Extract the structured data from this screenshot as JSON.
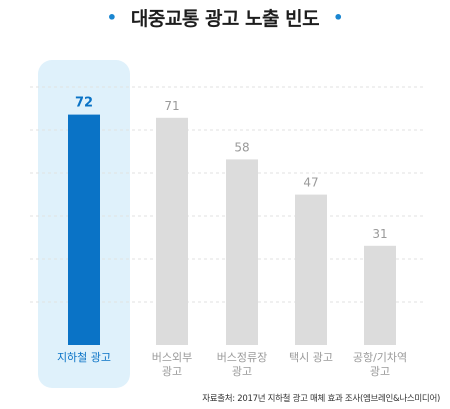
{
  "title": "대중교통 광고 노출 빈도",
  "title_dot": "•",
  "source": "자료출처: 2017년 지하철 광고 매체 효과 조사(엠브레인&나스미디어)",
  "colors": {
    "highlight": "#0a73c6",
    "highlight_bg": "#dff1fb",
    "bar": "#dcdcdc",
    "value_muted": "#9a9a9a",
    "grid": "#e2e2e2"
  },
  "chart_data": {
    "type": "bar",
    "title": "대중교통 광고 노출 빈도",
    "categories": [
      [
        "지하철 광고"
      ],
      [
        "버스외부",
        "광고"
      ],
      [
        "버스정류장",
        "광고"
      ],
      [
        "택시 광고"
      ],
      [
        "공항/기차역",
        "광고"
      ]
    ],
    "values": [
      72,
      71,
      58,
      47,
      31
    ],
    "highlight_index": 0,
    "ylim": [
      0,
      80
    ],
    "grid": true,
    "legend": "none"
  }
}
